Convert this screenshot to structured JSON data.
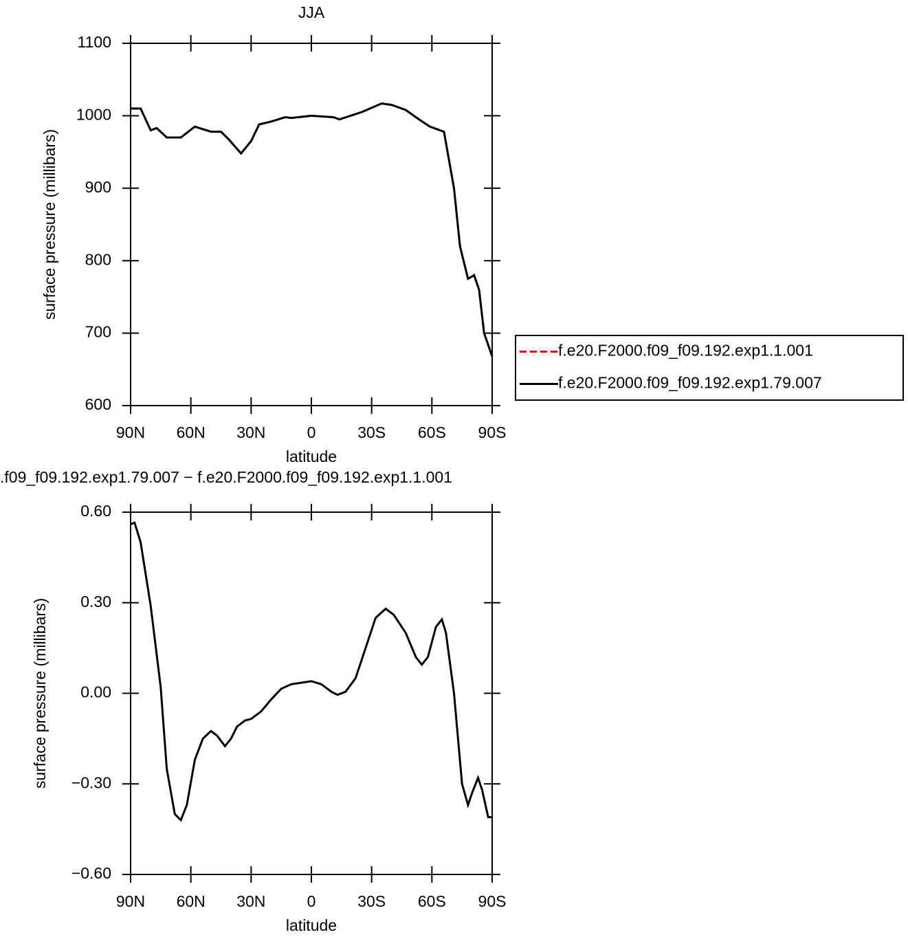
{
  "chart_data": [
    {
      "type": "line",
      "title": "JJA",
      "xlabel": "latitude",
      "ylabel": "surface pressure (millibars)",
      "x": [
        90,
        85,
        80,
        77,
        72,
        65,
        58,
        50,
        45,
        41,
        35,
        30,
        26,
        20,
        13,
        10,
        0,
        -11,
        -14,
        -25,
        -35,
        -40,
        -47,
        -52,
        -59,
        -66,
        -71,
        -74,
        -78,
        -81,
        -83.5,
        -86,
        -90
      ],
      "series": [
        {
          "name": "f.e20.F2000.f09_f09.192.exp1.1.001",
          "color": "#ff0000",
          "line_style": "dashed",
          "values": [
            1010,
            1010,
            980,
            983,
            970,
            970,
            985,
            978,
            978,
            967,
            948,
            965,
            988,
            992,
            998,
            997,
            1000,
            998,
            995,
            1005,
            1017,
            1015,
            1008,
            998,
            985,
            978,
            900,
            820,
            775,
            780,
            760,
            700,
            668
          ]
        },
        {
          "name": "f.e20.F2000.f09_f09.192.exp1.79.007",
          "color": "#000000",
          "line_style": "solid",
          "values": [
            1010,
            1010,
            980,
            983,
            970,
            970,
            985,
            978,
            978,
            967,
            948,
            965,
            988,
            992,
            998,
            997,
            1000,
            998,
            995,
            1005,
            1017,
            1015,
            1008,
            998,
            985,
            978,
            900,
            820,
            775,
            780,
            760,
            700,
            668
          ]
        }
      ],
      "xlim": [
        90,
        -90
      ],
      "xticks": [
        {
          "value": 90,
          "label": "90N"
        },
        {
          "value": 60,
          "label": "60N"
        },
        {
          "value": 30,
          "label": "30N"
        },
        0,
        {
          "value": -30,
          "label": "30S"
        },
        {
          "value": -60,
          "label": "60S"
        },
        {
          "value": -90,
          "label": "90S"
        }
      ],
      "ylim": [
        600,
        1100
      ],
      "yticks": [
        600,
        700,
        800,
        900,
        1000,
        1100
      ],
      "legend": "right"
    },
    {
      "type": "line",
      "title": ".f09_f09.192.exp1.79.007 − f.e20.F2000.f09_f09.192.exp1.1.001",
      "xlabel": "latitude",
      "ylabel": "surface pressure (millibars)",
      "x": [
        90,
        88,
        85,
        80,
        75,
        72,
        68,
        65,
        62,
        58,
        54,
        50,
        47,
        43,
        40,
        37,
        33,
        30,
        25,
        20,
        15,
        10,
        5,
        0,
        -5,
        -10,
        -13,
        -17,
        -22,
        -27,
        -32,
        -37,
        -41,
        -47,
        -52,
        -55,
        -58,
        -62,
        -65,
        -67,
        -71,
        -75,
        -78,
        -80,
        -83,
        -85,
        -88,
        -90
      ],
      "series": [
        {
          "color": "#000000",
          "line_style": "solid",
          "values": [
            0.56,
            0.565,
            0.5,
            0.29,
            0.02,
            -0.25,
            -0.4,
            -0.42,
            -0.37,
            -0.22,
            -0.15,
            -0.125,
            -0.14,
            -0.175,
            -0.15,
            -0.11,
            -0.09,
            -0.085,
            -0.06,
            -0.02,
            0.015,
            0.03,
            0.035,
            0.04,
            0.03,
            0.005,
            -0.005,
            0.005,
            0.05,
            0.15,
            0.25,
            0.28,
            0.26,
            0.2,
            0.12,
            0.095,
            0.12,
            0.22,
            0.245,
            0.2,
            0,
            -0.3,
            -0.37,
            -0.33,
            -0.28,
            -0.32,
            -0.41,
            -0.41
          ]
        }
      ],
      "xlim": [
        90,
        -90
      ],
      "xticks": [
        {
          "value": 90,
          "label": "90N"
        },
        {
          "value": 60,
          "label": "60N"
        },
        {
          "value": 30,
          "label": "30N"
        },
        0,
        {
          "value": -30,
          "label": "30S"
        },
        {
          "value": -60,
          "label": "60S"
        },
        {
          "value": -90,
          "label": "90S"
        }
      ],
      "ylim": [
        -0.6,
        0.6
      ],
      "yticks": [
        {
          "value": -0.6,
          "label": "−0.60"
        },
        {
          "value": -0.3,
          "label": "−0.30"
        },
        {
          "value": 0,
          "label": "0.00"
        },
        {
          "value": 0.3,
          "label": "0.30"
        },
        {
          "value": 0.6,
          "label": "0.60"
        }
      ]
    }
  ]
}
